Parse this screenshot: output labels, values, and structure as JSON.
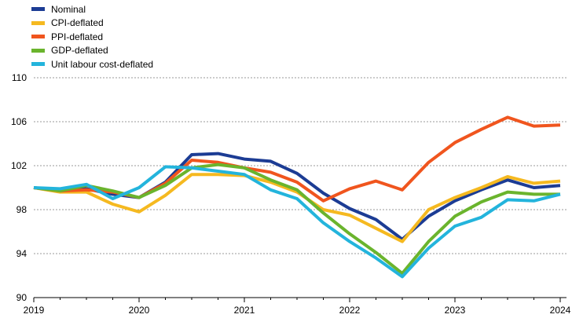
{
  "chart_data": {
    "type": "line",
    "title": "",
    "xlabel": "",
    "ylabel": "",
    "ylim": [
      90,
      110
    ],
    "yticks": [
      90,
      94,
      98,
      102,
      106,
      110
    ],
    "xticks": [
      "2019",
      "2020",
      "2021",
      "2022",
      "2023",
      "2024"
    ],
    "grid": "horizontal-dashed",
    "legend_position": "top-left",
    "x": [
      "2019Q1",
      "2019Q2",
      "2019Q3",
      "2019Q4",
      "2020Q1",
      "2020Q2",
      "2020Q3",
      "2020Q4",
      "2021Q1",
      "2021Q2",
      "2021Q3",
      "2021Q4",
      "2022Q1",
      "2022Q2",
      "2022Q3",
      "2022Q4",
      "2023Q1",
      "2023Q2",
      "2023Q3",
      "2023Q4",
      "2024Q1"
    ],
    "series": [
      {
        "name": "Nominal",
        "color": "#1c3c94",
        "values": [
          100.0,
          99.7,
          99.9,
          99.4,
          99.1,
          100.5,
          103.0,
          103.1,
          102.6,
          102.4,
          101.3,
          99.5,
          98.1,
          97.1,
          95.3,
          97.4,
          98.8,
          99.8,
          100.7,
          100.0,
          100.2
        ]
      },
      {
        "name": "CPI-deflated",
        "color": "#f5b920",
        "values": [
          100.0,
          99.6,
          99.6,
          98.5,
          97.8,
          99.3,
          101.2,
          101.2,
          101.1,
          100.5,
          99.6,
          98.0,
          97.5,
          96.3,
          95.1,
          98.0,
          99.1,
          100.0,
          101.0,
          100.4,
          100.6
        ]
      },
      {
        "name": "PPI-deflated",
        "color": "#f0551e",
        "values": [
          100.0,
          99.7,
          99.8,
          99.6,
          99.1,
          100.4,
          102.5,
          102.3,
          101.8,
          101.4,
          100.5,
          98.8,
          99.9,
          100.6,
          99.8,
          102.3,
          104.1,
          105.3,
          106.4,
          105.6,
          105.7
        ]
      },
      {
        "name": "GDP-deflated",
        "color": "#6ab42d",
        "values": [
          100.0,
          99.7,
          100.2,
          99.7,
          99.1,
          100.2,
          101.8,
          102.1,
          101.8,
          100.7,
          99.8,
          97.7,
          95.8,
          94.1,
          92.2,
          95.1,
          97.4,
          98.7,
          99.6,
          99.4,
          99.4
        ]
      },
      {
        "name": "Unit labour cost-deflated",
        "color": "#23b4dc",
        "values": [
          100.0,
          99.9,
          100.3,
          99.0,
          100.0,
          101.9,
          101.8,
          101.5,
          101.2,
          99.8,
          99.0,
          96.8,
          95.1,
          93.6,
          91.9,
          94.5,
          96.5,
          97.3,
          98.9,
          98.8,
          99.4
        ]
      }
    ]
  }
}
